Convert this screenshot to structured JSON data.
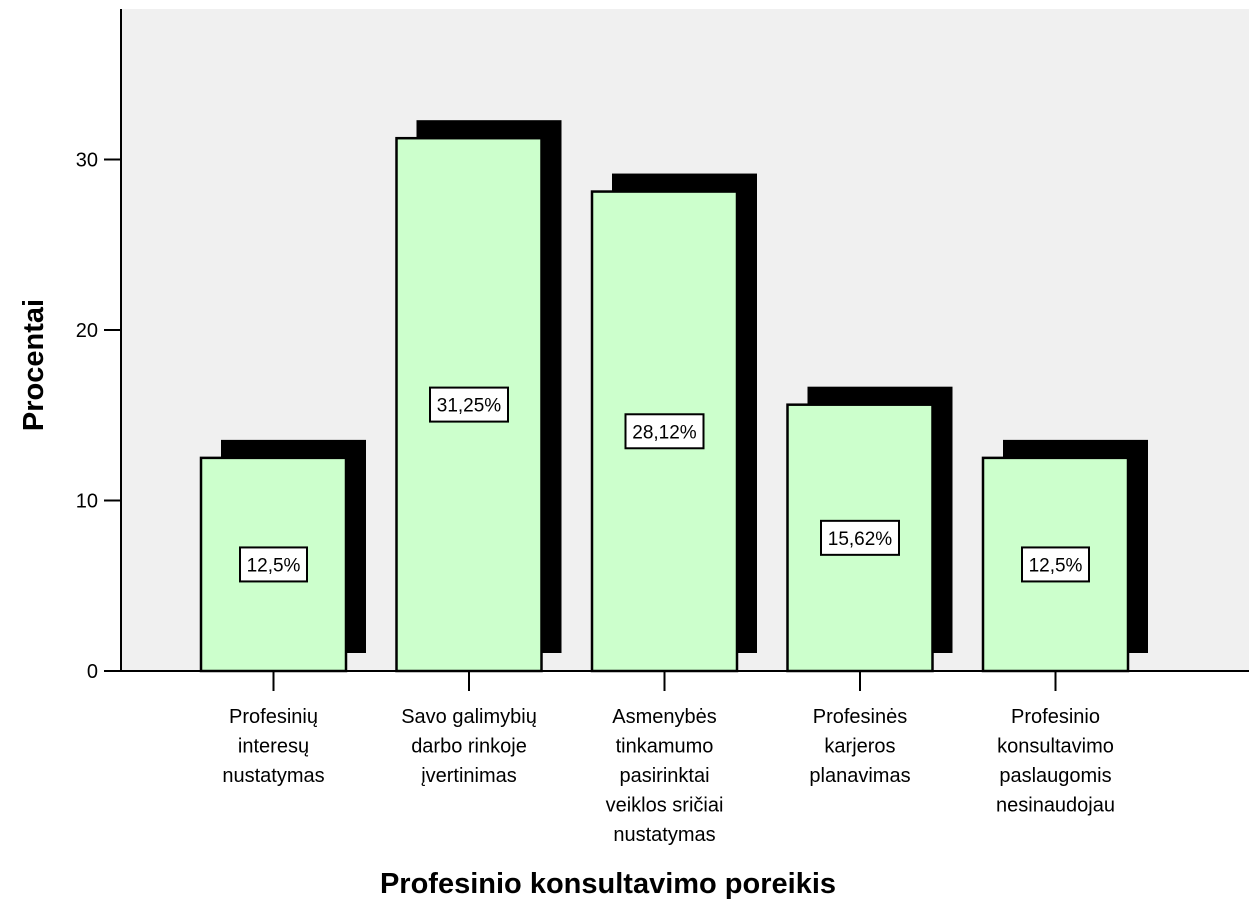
{
  "chart_data": {
    "type": "bar",
    "title": "",
    "xlabel": "Profesinio konsultavimo poreikis",
    "ylabel": "Procentai",
    "ylim": [
      0,
      38
    ],
    "yticks": [
      "0",
      "10",
      "20",
      "30"
    ],
    "categories": [
      [
        "Profesinių",
        "interesų",
        "nustatymas"
      ],
      [
        "Savo galimybių",
        "darbo rinkoje",
        "įvertinimas"
      ],
      [
        "Asmenybės",
        "tinkamumo",
        "pasirinktai",
        "veiklos sričiai",
        "nustatymas"
      ],
      [
        "Profesinės",
        "karjeros",
        "planavimas"
      ],
      [
        "Profesinio",
        "konsultavimo",
        "paslaugomis",
        "nesinaudojau"
      ]
    ],
    "values": [
      12.5,
      31.25,
      28.12,
      15.62,
      12.5
    ],
    "data_labels": [
      "12,5%",
      "31,25%",
      "28,12%",
      "15,62%",
      "12,5%"
    ],
    "bar_color": "#ccffcc",
    "shadow_color": "#000000",
    "plot_background": "#f0f0f0",
    "grid": false,
    "legend": "none"
  }
}
